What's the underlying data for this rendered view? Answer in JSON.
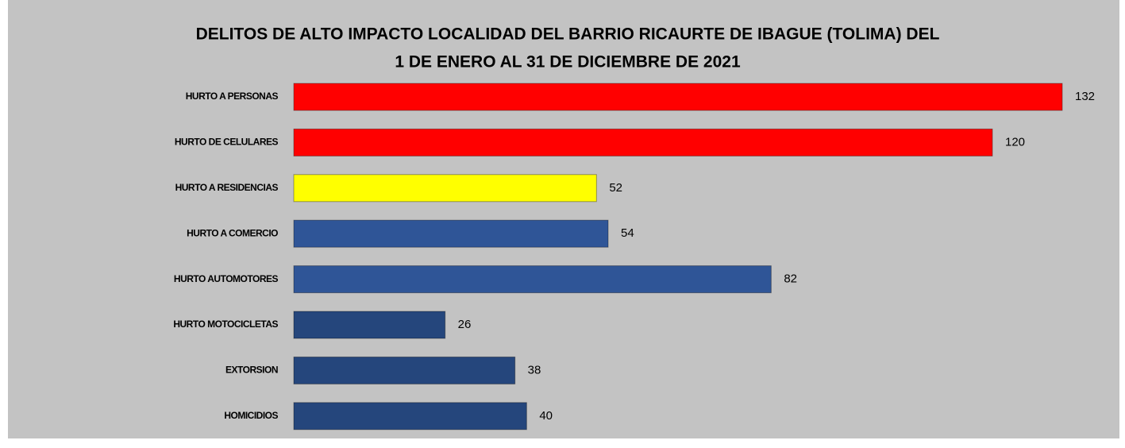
{
  "chart_data": {
    "type": "bar",
    "orientation": "horizontal",
    "title": [
      "DELITOS DE ALTO  IMPACTO  LOCALIDAD  DEL BARRIO RICAURTE DE IBAGUE (TOLIMA)  DEL",
      "1 DE ENERO AL 31 DE DICIEMBRE  DE 2021"
    ],
    "categories": [
      "HURTO A PERSONAS",
      "HURTO DE CELULARES",
      "HURTO A RESIDENCIAS",
      "HURTO A COMERCIO",
      "HURTO AUTOMOTORES",
      "HURTO MOTOCICLETAS",
      "EXTORSION",
      "HOMICIDIOS"
    ],
    "values": [
      132,
      120,
      52,
      54,
      82,
      26,
      38,
      40
    ],
    "colors": [
      "#ff0000",
      "#ff0000",
      "#ffff00",
      "#2f5597",
      "#2f5597",
      "#25467c",
      "#25467c",
      "#25467c"
    ]
  }
}
